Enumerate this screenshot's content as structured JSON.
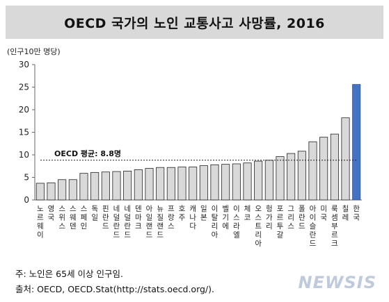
{
  "header": {
    "title": "OECD 국가의 노인 교통사고 사망률, 2016"
  },
  "chart_data": {
    "type": "bar",
    "title": "OECD 국가의 노인 교통사고 사망률, 2016",
    "unit_label": "(인구10만 명당)",
    "ylim": [
      0,
      30
    ],
    "yticks": [
      0,
      5,
      10,
      15,
      20,
      25,
      30
    ],
    "grid": false,
    "categories": [
      "노르웨이",
      "영국",
      "스위스",
      "스웨덴",
      "스페인",
      "독일",
      "핀란드",
      "네덜란드",
      "네덜란드",
      "덴마크",
      "아일랜드",
      "뉴질랜드",
      "프랑스",
      "호주",
      "캐나다",
      "일본",
      "이탈리아",
      "벨기에",
      "이스라엘",
      "체코",
      "오스트리아",
      "헝가리",
      "포르투갈",
      "그리스",
      "폴란드",
      "아이슬란드",
      "미국",
      "룩셈부르크",
      "칠레",
      "한국"
    ],
    "category_display": [
      "노르웨이",
      "영국",
      "스위스",
      "스웨덴",
      "스페인",
      "독일",
      "핀란드",
      "네덜란드",
      "네덜란드",
      "덴마크",
      "아일랜드",
      "뉴질랜드",
      "프랑스",
      "호주",
      "캐나다",
      "일본",
      "이탈리아",
      "벨기에",
      "이스라엘",
      "체코",
      "오스트리아",
      "헝가리",
      "포르투갈",
      "그리스",
      "폴란드",
      "아이슬란드",
      "미국",
      "룩셈부르크",
      "칠레",
      "한국"
    ],
    "values": [
      3.7,
      3.8,
      4.5,
      4.5,
      5.9,
      6.1,
      6.2,
      6.3,
      6.4,
      6.7,
      7.0,
      7.2,
      7.2,
      7.3,
      7.3,
      7.6,
      7.8,
      7.9,
      8.0,
      8.2,
      8.6,
      8.8,
      9.6,
      10.3,
      10.8,
      12.9,
      13.9,
      14.6,
      18.2,
      25.6
    ],
    "highlight_index": 29,
    "colors": {
      "bar": "#d9d9d9",
      "bar_stroke": "#222222",
      "highlight": "#4472c4",
      "highlight_stroke": "#2f5597"
    },
    "reference_line": {
      "value": 8.8,
      "label": "OECD 평균: 8.8명"
    }
  },
  "footer": {
    "note": "주: 노인은 65세 이상 인구임.",
    "source": "출처: OECD, OECD.Stat(http://stats.oecd.org/).",
    "watermark": "NEWSIS"
  }
}
